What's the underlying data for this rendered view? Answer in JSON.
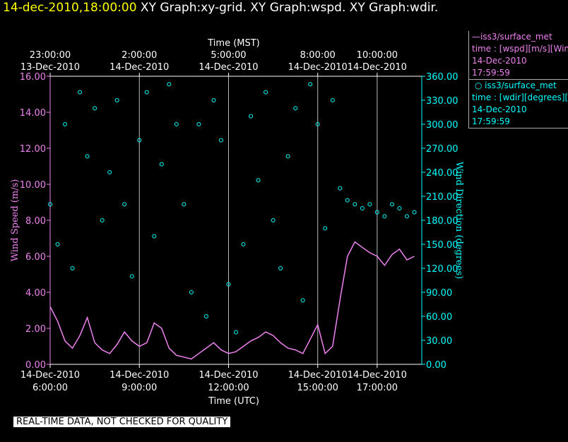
{
  "header": {
    "timestamp": "14-dec-2010,18:00:00",
    "graph_titles": "XY Graph:xy-grid.  XY Graph:wspd.  XY Graph:wdir."
  },
  "legend": {
    "wspd": {
      "series": "iss3/surface_met",
      "var": "time : [wspd][m/s][Wind",
      "date": "14-Dec-2010",
      "time": "17:59:59",
      "color": "#ee82ee"
    },
    "wdir": {
      "series": "iss3/surface_met",
      "var": "time : [wdir][degrees][W",
      "date": "14-Dec-2010",
      "time": "17:59:59",
      "color": "#00ffff"
    }
  },
  "footer": {
    "note": "REAL-TIME DATA, NOT CHECKED FOR QUALITY"
  },
  "chart_data": {
    "type": "scatter",
    "title": "",
    "top_axis_label": "Time (MST)",
    "xlabel": "Time (UTC)",
    "ylabel": "Wind Speed (m/s)",
    "y2label": "Wind Direction (degrees)",
    "xlim": [
      6,
      18.5
    ],
    "ylim": [
      0,
      16
    ],
    "y2lim": [
      0,
      360
    ],
    "grid": true,
    "y_ticks": [
      "0.00",
      "2.00",
      "4.00",
      "6.00",
      "8.00",
      "10.00",
      "12.00",
      "14.00",
      "16.00"
    ],
    "y2_ticks": [
      "0.00",
      "30.00",
      "60.00",
      "90.00",
      "120.00",
      "150.00",
      "180.00",
      "210.00",
      "240.00",
      "270.00",
      "300.00",
      "330.00",
      "360.00"
    ],
    "bottom_ticks": [
      {
        "x": 6,
        "date": "14-Dec-2010",
        "time": "6:00:00"
      },
      {
        "x": 9,
        "date": "14-Dec-2010",
        "time": "9:00:00"
      },
      {
        "x": 12,
        "date": "14-Dec-2010",
        "time": "12:00:00"
      },
      {
        "x": 15,
        "date": "14-Dec-2010",
        "time": "15:00:00"
      },
      {
        "x": 17,
        "date": "14-Dec-2010",
        "time": "17:00:00"
      }
    ],
    "top_ticks": [
      {
        "x": 6,
        "time": "23:00:00",
        "date": "13-Dec-2010"
      },
      {
        "x": 9,
        "time": "2:00:00",
        "date": "14-Dec-2010"
      },
      {
        "x": 12,
        "time": "5:00:00",
        "date": "14-Dec-2010"
      },
      {
        "x": 15,
        "time": "8:00:00",
        "date": "14-Dec-2010"
      },
      {
        "x": 17,
        "time": "10:00:00",
        "date": "14-Dec-2010"
      }
    ],
    "series": [
      {
        "name": "iss3/surface_met wspd",
        "axis": "left",
        "color": "#ee82ee",
        "x": [
          6.0,
          6.25,
          6.5,
          6.75,
          7.0,
          7.25,
          7.5,
          7.75,
          8.0,
          8.25,
          8.5,
          8.75,
          9.0,
          9.25,
          9.5,
          9.75,
          10.0,
          10.25,
          10.5,
          10.75,
          11.0,
          11.25,
          11.5,
          11.75,
          12.0,
          12.25,
          12.5,
          12.75,
          13.0,
          13.25,
          13.5,
          13.75,
          14.0,
          14.25,
          14.5,
          14.75,
          15.0,
          15.25,
          15.5,
          15.75,
          16.0,
          16.25,
          16.5,
          16.75,
          17.0,
          17.25,
          17.5,
          17.75,
          18.0,
          18.25
        ],
        "y": [
          3.2,
          2.4,
          1.3,
          0.9,
          1.6,
          2.6,
          1.2,
          0.8,
          0.6,
          1.1,
          1.8,
          1.3,
          1.0,
          1.2,
          2.3,
          2.0,
          0.9,
          0.5,
          0.4,
          0.3,
          0.6,
          0.9,
          1.2,
          0.8,
          0.6,
          0.7,
          1.0,
          1.3,
          1.5,
          1.8,
          1.6,
          1.2,
          0.9,
          0.8,
          0.6,
          1.4,
          2.2,
          0.6,
          1.0,
          3.6,
          6.0,
          6.8,
          6.5,
          6.2,
          6.0,
          5.5,
          6.1,
          6.4,
          5.8,
          6.0
        ]
      },
      {
        "name": "iss3/surface_met wdir",
        "axis": "right",
        "color": "#00ffff",
        "x": [
          6.0,
          6.25,
          6.5,
          6.75,
          7.0,
          7.25,
          7.5,
          7.75,
          8.0,
          8.25,
          8.5,
          8.75,
          9.0,
          9.25,
          9.5,
          9.75,
          10.0,
          10.25,
          10.5,
          10.75,
          11.0,
          11.25,
          11.5,
          11.75,
          12.0,
          12.25,
          12.5,
          12.75,
          13.0,
          13.25,
          13.5,
          13.75,
          14.0,
          14.25,
          14.5,
          14.75,
          15.0,
          15.25,
          15.5,
          15.75,
          16.0,
          16.25,
          16.5,
          16.75,
          17.0,
          17.25,
          17.5,
          17.75,
          18.0,
          18.25
        ],
        "y": [
          200,
          150,
          300,
          120,
          340,
          260,
          320,
          180,
          240,
          330,
          200,
          110,
          280,
          340,
          160,
          250,
          350,
          300,
          200,
          90,
          300,
          60,
          330,
          280,
          100,
          40,
          150,
          310,
          230,
          340,
          180,
          120,
          260,
          320,
          80,
          350,
          300,
          170,
          330,
          220,
          205,
          200,
          195,
          200,
          190,
          185,
          200,
          195,
          185,
          190
        ]
      }
    ]
  }
}
